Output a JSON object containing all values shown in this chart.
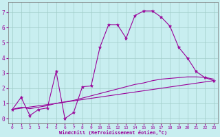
{
  "xlabel": "Windchill (Refroidissement éolien,°C)",
  "bg_color": "#c8eef0",
  "line_color": "#990099",
  "grid_color": "#a0ccc8",
  "xlim": [
    -0.5,
    23.5
  ],
  "ylim": [
    -0.3,
    7.7
  ],
  "xticks": [
    0,
    1,
    2,
    3,
    4,
    5,
    6,
    7,
    8,
    9,
    10,
    11,
    12,
    13,
    14,
    15,
    16,
    17,
    18,
    19,
    20,
    21,
    22,
    23
  ],
  "yticks": [
    0,
    1,
    2,
    3,
    4,
    5,
    6,
    7
  ],
  "series1_x": [
    0,
    1,
    2,
    3,
    4,
    5,
    6,
    7,
    8,
    9,
    10,
    11,
    12,
    13,
    14,
    15,
    16,
    17,
    18,
    19,
    20,
    21,
    22,
    23
  ],
  "series1_y": [
    0.6,
    1.4,
    0.2,
    0.6,
    0.7,
    3.1,
    0.0,
    0.4,
    2.1,
    2.15,
    4.7,
    6.2,
    6.2,
    5.3,
    6.8,
    7.1,
    7.1,
    6.7,
    6.1,
    4.7,
    4.0,
    3.1,
    2.7,
    2.5
  ],
  "series2_x": [
    0,
    1,
    2,
    3,
    4,
    5,
    6,
    7,
    8,
    9,
    10,
    11,
    12,
    13,
    14,
    15,
    16,
    17,
    18,
    19,
    20,
    21,
    22,
    23
  ],
  "series2_y": [
    0.6,
    0.75,
    0.65,
    0.75,
    0.85,
    1.0,
    1.1,
    1.2,
    1.35,
    1.5,
    1.65,
    1.8,
    1.95,
    2.1,
    2.25,
    2.35,
    2.5,
    2.6,
    2.65,
    2.7,
    2.75,
    2.75,
    2.72,
    2.6
  ],
  "series3_x": [
    0,
    5,
    23
  ],
  "series3_y": [
    0.6,
    1.0,
    2.5
  ]
}
